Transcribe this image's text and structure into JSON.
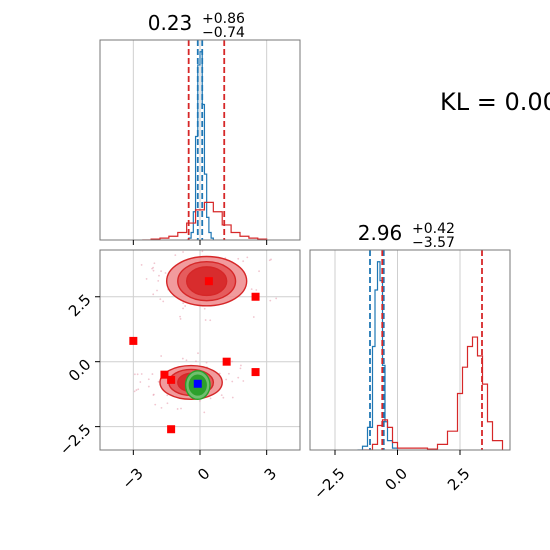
{
  "colors": {
    "blue": "#1f77b4",
    "red": "#d62728",
    "red_fill_light": "#ee8a8c",
    "red_fill_dark": "#d62728",
    "green": "#2ca02c",
    "marker_red": "#ff0000",
    "marker_blue": "#0000ff",
    "grid": "#cfcfcf",
    "frame": "#777777"
  },
  "annotation": {
    "text": "KL = 0.00"
  },
  "chart_data": [
    {
      "type": "histogram",
      "panel": "top-left",
      "title": {
        "value": "0.23",
        "sup": "+0.86",
        "sub": "−0.74"
      },
      "xlim": [
        -4.5,
        4.5
      ],
      "grid": true,
      "xticks": [
        -3,
        0,
        3
      ],
      "tick_labels_shown": false,
      "series": [
        {
          "color": "blue",
          "kind": "step",
          "x": [
            -0.6,
            -0.5,
            -0.4,
            -0.3,
            -0.2,
            -0.1,
            0.0,
            0.1,
            0.2,
            0.3,
            0.4,
            0.5,
            0.6
          ],
          "y": [
            0.0,
            0.01,
            0.04,
            0.15,
            0.55,
            0.93,
            1.0,
            0.72,
            0.35,
            0.12,
            0.04,
            0.01,
            0.0
          ],
          "quantile_lines": [
            -0.1,
            0.1
          ]
        },
        {
          "color": "red",
          "kind": "step",
          "x": [
            -2.6,
            -2.2,
            -1.8,
            -1.4,
            -1.0,
            -0.6,
            -0.2,
            0.2,
            0.6,
            1.0,
            1.4,
            1.8,
            2.2,
            2.6,
            3.0
          ],
          "y": [
            0.0,
            0.005,
            0.01,
            0.02,
            0.04,
            0.09,
            0.16,
            0.2,
            0.15,
            0.08,
            0.04,
            0.02,
            0.01,
            0.005,
            0.0
          ],
          "quantile_lines": [
            -0.51,
            1.09
          ]
        }
      ]
    },
    {
      "type": "contour",
      "panel": "bottom-left",
      "xlim": [
        -4.5,
        4.5
      ],
      "ylim": [
        -3.4,
        4.3
      ],
      "grid": true,
      "xticks": [
        -3,
        0,
        3
      ],
      "yticks": [
        -2.5,
        0.0,
        2.5
      ],
      "xtick_labels": [
        "−3",
        "0",
        "3"
      ],
      "ytick_labels": [
        "−2.5",
        "0.0",
        "2.5"
      ],
      "blobs": [
        {
          "color": "red",
          "center": [
            0.3,
            3.1
          ],
          "rx": [
            1.8,
            1.3,
            0.9
          ],
          "ry": [
            0.95,
            0.75,
            0.55
          ]
        },
        {
          "color": "red",
          "center": [
            -0.4,
            -0.8
          ],
          "rx": [
            1.4,
            1.0,
            0.6
          ],
          "ry": [
            0.65,
            0.5,
            0.35
          ]
        },
        {
          "color": "green",
          "center": [
            -0.1,
            -0.9
          ],
          "rx": [
            0.55,
            0.38
          ],
          "ry": [
            0.55,
            0.38
          ]
        }
      ],
      "red_markers": [
        {
          "x": 0.4,
          "y": 3.1
        },
        {
          "x": 2.5,
          "y": 2.5
        },
        {
          "x": -3.0,
          "y": 0.8
        },
        {
          "x": 1.2,
          "y": 0.0
        },
        {
          "x": 2.5,
          "y": -0.4
        },
        {
          "x": -1.6,
          "y": -0.5
        },
        {
          "x": -1.3,
          "y": -0.7
        },
        {
          "x": -1.3,
          "y": -2.6
        }
      ],
      "blue_marker": {
        "x": -0.1,
        "y": -0.85
      }
    },
    {
      "type": "histogram",
      "panel": "bottom-right",
      "title": {
        "value": "2.96",
        "sup": "+0.42",
        "sub": "−3.57"
      },
      "xlim": [
        -3.5,
        4.5
      ],
      "grid": true,
      "xticks": [
        -2.5,
        0.0,
        2.5
      ],
      "xtick_labels": [
        "−2.5",
        "0.0",
        "2.5"
      ],
      "series": [
        {
          "color": "blue",
          "kind": "step",
          "x": [
            -1.6,
            -1.4,
            -1.2,
            -1.0,
            -0.9,
            -0.8,
            -0.7,
            -0.6,
            -0.5,
            -0.4,
            -0.2,
            0.0
          ],
          "y": [
            0.0,
            0.02,
            0.12,
            0.55,
            0.85,
            1.0,
            0.9,
            0.45,
            0.15,
            0.05,
            0.01,
            0.0
          ],
          "quantile_lines": [
            -1.1,
            -0.55
          ]
        },
        {
          "color": "red",
          "kind": "step",
          "x": [
            -1.4,
            -1.0,
            -0.8,
            -0.6,
            -0.4,
            -0.2,
            0.0,
            1.2,
            1.6,
            2.0,
            2.4,
            2.6,
            2.8,
            3.0,
            3.2,
            3.4,
            3.6,
            3.8,
            4.2
          ],
          "y": [
            0.0,
            0.03,
            0.13,
            0.16,
            0.12,
            0.04,
            0.01,
            0.005,
            0.03,
            0.1,
            0.3,
            0.44,
            0.55,
            0.6,
            0.5,
            0.35,
            0.15,
            0.05,
            0.0
          ],
          "quantile_lines": [
            -0.61,
            3.38
          ]
        }
      ]
    }
  ]
}
